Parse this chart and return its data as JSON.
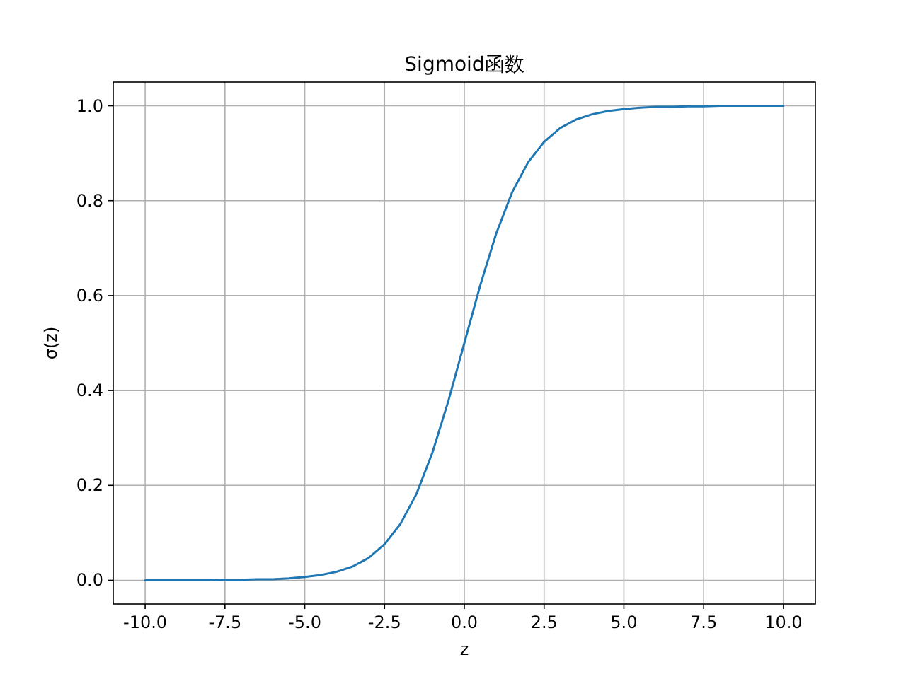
{
  "chart_data": {
    "type": "line",
    "title": "Sigmoid函数",
    "xlabel": "z",
    "ylabel": "σ(z)",
    "x": [
      -10,
      -9.5,
      -9,
      -8.5,
      -8,
      -7.5,
      -7,
      -6.5,
      -6,
      -5.5,
      -5,
      -4.5,
      -4,
      -3.5,
      -3,
      -2.5,
      -2,
      -1.5,
      -1,
      -0.5,
      0,
      0.5,
      1,
      1.5,
      2,
      2.5,
      3,
      3.5,
      4,
      4.5,
      5,
      5.5,
      6,
      6.5,
      7,
      7.5,
      8,
      8.5,
      9,
      9.5,
      10
    ],
    "series": [
      {
        "color": "#1f77b4",
        "values": [
          0,
          0,
          0,
          0,
          0,
          0.001,
          0.001,
          0.002,
          0.002,
          0.004,
          0.007,
          0.011,
          0.018,
          0.029,
          0.047,
          0.076,
          0.119,
          0.182,
          0.269,
          0.378,
          0.5,
          0.622,
          0.731,
          0.818,
          0.881,
          0.924,
          0.953,
          0.971,
          0.982,
          0.989,
          0.993,
          0.996,
          0.998,
          0.998,
          0.999,
          0.999,
          1,
          1,
          1,
          1,
          1
        ]
      }
    ],
    "xlim": [
      -11,
      11
    ],
    "ylim": [
      -0.05,
      1.05
    ],
    "xticks": [
      {
        "value": -10,
        "label": "-10.0"
      },
      {
        "value": -7.5,
        "label": "-7.5"
      },
      {
        "value": -5,
        "label": "-5.0"
      },
      {
        "value": -2.5,
        "label": "-2.5"
      },
      {
        "value": 0,
        "label": "0.0"
      },
      2.5,
      {
        "value": 5,
        "label": "5.0"
      },
      7.5,
      {
        "value": 10,
        "label": "10.0"
      }
    ],
    "yticks": [
      {
        "value": 0,
        "label": "0.0"
      },
      0.2,
      0.4,
      0.6,
      0.8,
      {
        "value": 1,
        "label": "1.0"
      }
    ],
    "grid": true,
    "marker": "none",
    "line_style": "solid"
  }
}
